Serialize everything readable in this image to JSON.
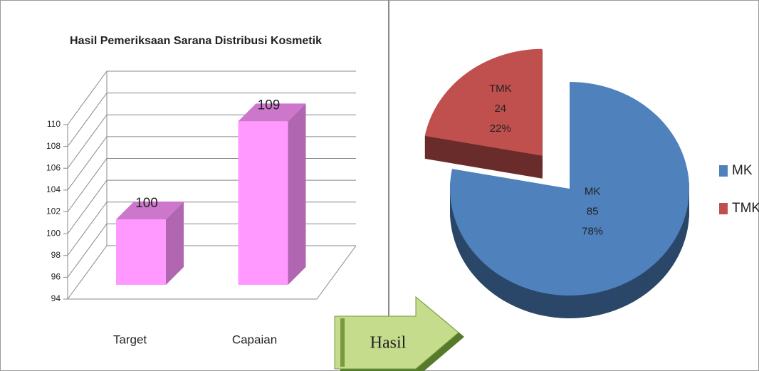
{
  "chart_data": [
    {
      "type": "bar3d",
      "title": "Hasil Pemeriksaan Sarana Distribusi Kosmetik",
      "categories": [
        "Target",
        "Capaian"
      ],
      "values": [
        100,
        109
      ],
      "color": "#ff99ff",
      "ylim": [
        94,
        110
      ],
      "yticks": [
        94,
        96,
        98,
        100,
        102,
        104,
        106,
        108,
        110
      ],
      "grid": true
    },
    {
      "type": "pie3d",
      "categories": [
        "MK",
        "TMK"
      ],
      "values": [
        85,
        24
      ],
      "percent_labels": [
        "78%",
        "22%"
      ],
      "colors": [
        "#4f81bd",
        "#c0504d"
      ],
      "legend": "right"
    }
  ],
  "arrow_label": "Hasil"
}
